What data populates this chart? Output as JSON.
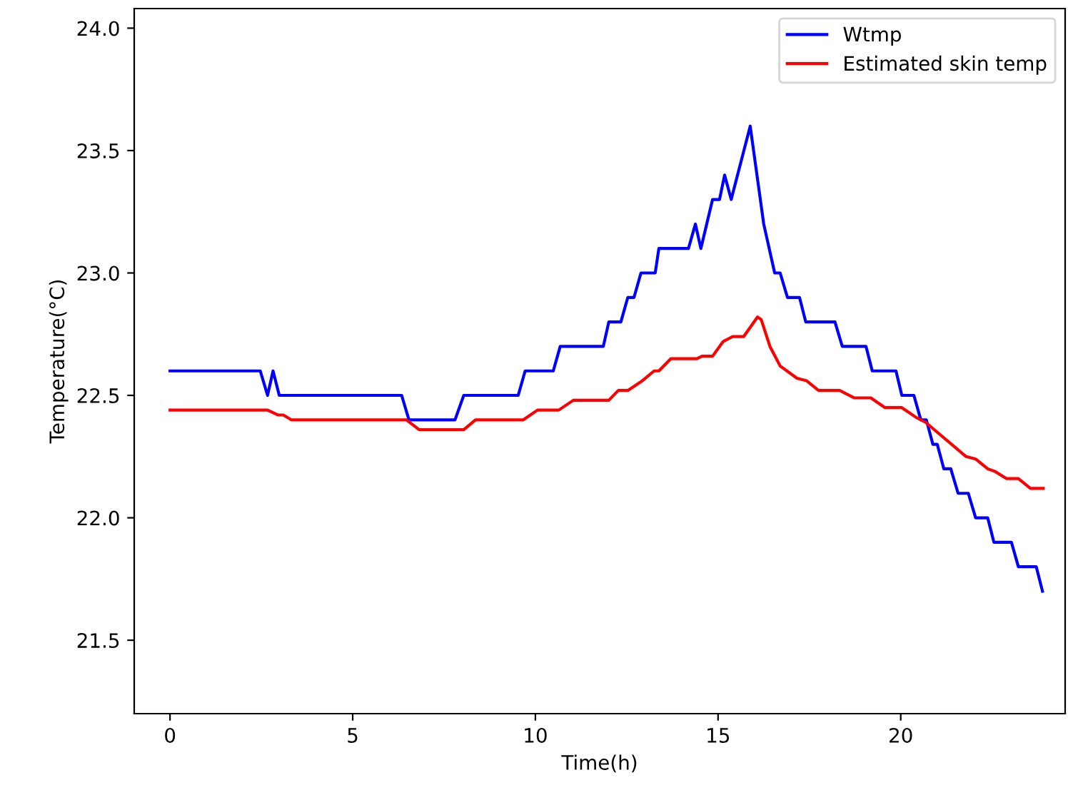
{
  "chart_data": {
    "type": "line",
    "xlabel": "Time(h)",
    "ylabel": "Temperature(°C)",
    "xlim": [
      -0.98,
      24.5
    ],
    "ylim": [
      21.2,
      24.08
    ],
    "xticks": [
      0,
      5,
      10,
      15,
      20
    ],
    "yticks": [
      {
        "value": 21.5,
        "label": "21.5"
      },
      {
        "value": 22.0,
        "label": "22.0"
      },
      {
        "value": 22.5,
        "label": "22.5"
      },
      {
        "value": 23.0,
        "label": "23.0"
      },
      {
        "value": 23.5,
        "label": "23.5"
      },
      {
        "value": 24.0,
        "label": "24.0"
      }
    ],
    "grid": false,
    "legend": "top right",
    "marker": "none",
    "line_style": "solid",
    "series": [
      {
        "name": "Wtmp",
        "color": "#0000ff",
        "x": [
          0,
          2.47,
          2.67,
          2.82,
          2.99,
          6.34,
          6.54,
          7.8,
          8.04,
          9.53,
          9.72,
          10.49,
          10.68,
          11.86,
          12.01,
          12.34,
          12.53,
          12.7,
          12.89,
          13.28,
          13.38,
          14.19,
          14.38,
          14.53,
          14.85,
          15.04,
          15.18,
          15.36,
          15.88,
          16.25,
          16.55,
          16.7,
          16.9,
          17.23,
          17.4,
          18.2,
          18.4,
          19.05,
          19.22,
          19.87,
          20.03,
          20.36,
          20.55,
          20.7,
          20.88,
          21.0,
          21.18,
          21.37,
          21.57,
          21.85,
          22.05,
          22.38,
          22.55,
          23.03,
          23.22,
          23.71,
          23.88
        ],
        "values": [
          22.6,
          22.6,
          22.5,
          22.6,
          22.5,
          22.5,
          22.4,
          22.4,
          22.5,
          22.5,
          22.6,
          22.6,
          22.7,
          22.7,
          22.8,
          22.8,
          22.9,
          22.9,
          23.0,
          23.0,
          23.1,
          23.1,
          23.2,
          23.1,
          23.3,
          23.3,
          23.4,
          23.3,
          23.6,
          23.2,
          23.0,
          23.0,
          22.9,
          22.9,
          22.8,
          22.8,
          22.7,
          22.7,
          22.6,
          22.6,
          22.5,
          22.5,
          22.4,
          22.4,
          22.3,
          22.3,
          22.2,
          22.2,
          22.1,
          22.1,
          22.0,
          22.0,
          21.9,
          21.9,
          21.8,
          21.8,
          21.7
        ]
      },
      {
        "name": "Estimated skin temp",
        "color": "#ff0000",
        "x": [
          0,
          2.67,
          2.95,
          3.1,
          3.32,
          6.47,
          6.82,
          8.04,
          8.36,
          9.67,
          10.06,
          10.64,
          11.04,
          12.01,
          12.27,
          12.53,
          12.93,
          13.25,
          13.38,
          13.71,
          14.42,
          14.56,
          14.85,
          15.14,
          15.4,
          15.7,
          16.08,
          16.18,
          16.42,
          16.7,
          17.16,
          17.42,
          17.75,
          18.33,
          18.72,
          19.18,
          19.57,
          20.03,
          20.42,
          20.68,
          21.79,
          22.05,
          22.38,
          22.57,
          22.9,
          23.22,
          23.55,
          23.9
        ],
        "values": [
          22.44,
          22.44,
          22.42,
          22.42,
          22.4,
          22.4,
          22.36,
          22.36,
          22.4,
          22.4,
          22.44,
          22.44,
          22.48,
          22.48,
          22.52,
          22.52,
          22.56,
          22.6,
          22.6,
          22.65,
          22.65,
          22.66,
          22.66,
          22.72,
          22.74,
          22.74,
          22.82,
          22.81,
          22.7,
          22.62,
          22.57,
          22.56,
          22.52,
          22.52,
          22.49,
          22.49,
          22.45,
          22.45,
          22.41,
          22.39,
          22.25,
          22.24,
          22.2,
          22.19,
          22.16,
          22.16,
          22.12,
          22.12
        ]
      }
    ]
  }
}
